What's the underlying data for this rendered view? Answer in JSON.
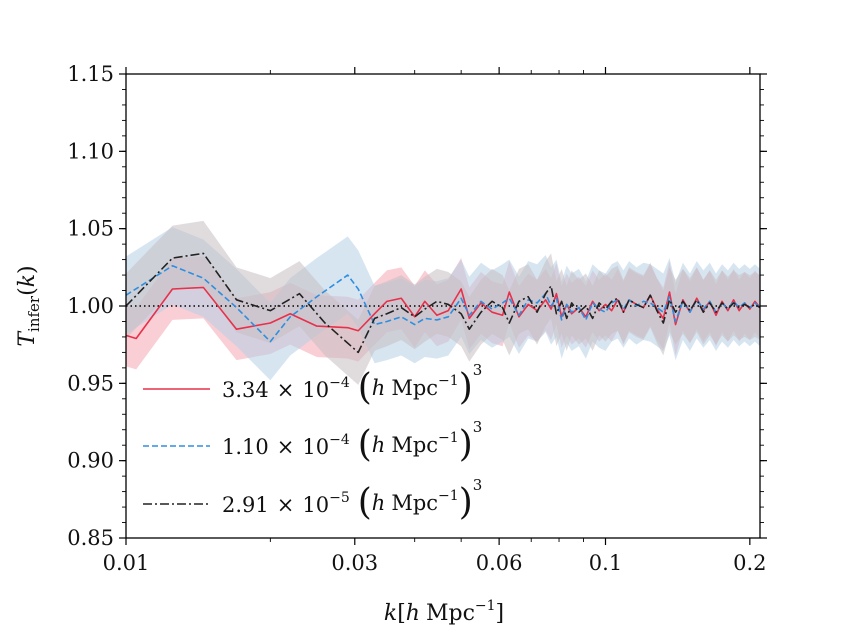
{
  "chart_data": {
    "type": "line",
    "xlabel": "k[h Mpc⁻¹]",
    "ylabel": "T_infer(k)",
    "xscale": "log",
    "xlim": [
      0.01,
      0.21
    ],
    "ylim": [
      0.85,
      1.15
    ],
    "x_ticks": [
      0.01,
      0.03,
      0.06,
      0.1,
      0.2
    ],
    "x_tick_labels": [
      "0.01",
      "0.03",
      "0.06",
      "0.1",
      "0.2"
    ],
    "y_ticks": [
      0.85,
      0.9,
      0.95,
      1.0,
      1.05,
      1.1,
      1.15
    ],
    "y_tick_labels": [
      "0.85",
      "0.90",
      "0.95",
      "1.00",
      "1.05",
      "1.10",
      "1.15"
    ],
    "reference_line": {
      "y": 1.0,
      "style": "dotted",
      "color": "#000000"
    },
    "legend_position": "lower-left",
    "grid": false,
    "series": [
      {
        "name": "3.34 × 10⁻⁴ (h Mpc⁻¹)³",
        "color": "#e8304a",
        "style": "solid",
        "band_color": "#f4a6b2",
        "band_halfwidth": 0.02,
        "x": [
          0.01,
          0.0105,
          0.0125,
          0.0145,
          0.017,
          0.02,
          0.022,
          0.025,
          0.029,
          0.0305,
          0.033,
          0.035,
          0.0375,
          0.04,
          0.042,
          0.0445,
          0.047,
          0.05,
          0.052,
          0.055,
          0.058,
          0.061,
          0.063,
          0.066,
          0.069,
          0.072,
          0.075,
          0.077,
          0.079,
          0.081,
          0.083,
          0.085,
          0.088,
          0.091,
          0.094,
          0.097,
          0.1,
          0.103,
          0.106,
          0.109,
          0.112,
          0.116,
          0.12,
          0.124,
          0.128,
          0.132,
          0.136,
          0.14,
          0.145,
          0.15,
          0.155,
          0.16,
          0.165,
          0.17,
          0.175,
          0.18,
          0.185,
          0.19,
          0.195,
          0.2,
          0.205,
          0.21
        ],
        "y": [
          0.981,
          0.979,
          1.011,
          1.012,
          0.985,
          0.989,
          0.995,
          0.987,
          0.986,
          0.984,
          0.995,
          1.003,
          1.005,
          0.993,
          1.003,
          0.994,
          0.997,
          1.011,
          0.992,
          1.002,
          0.996,
          0.994,
          1.009,
          0.993,
          1.001,
          0.997,
          1.004,
          0.998,
          1.008,
          0.993,
          1.001,
          0.995,
          0.999,
          0.993,
          1.003,
          0.997,
          1.001,
          0.997,
          1.004,
          0.996,
          1.004,
          1.001,
          0.999,
          1.007,
          0.998,
          0.992,
          1.009,
          0.988,
          1.004,
          0.996,
          1.005,
          0.997,
          1.003,
          0.994,
          1.003,
          0.997,
          1.004,
          0.997,
          1.002,
          0.998,
          1.003,
          0.999
        ]
      },
      {
        "name": "1.10 × 10⁻⁴ (h Mpc⁻¹)³",
        "color": "#2e8fe0",
        "style": "dashed",
        "band_color": "#b6cfe6",
        "band_halfwidth": 0.025,
        "x": [
          0.01,
          0.0125,
          0.0145,
          0.017,
          0.02,
          0.022,
          0.025,
          0.029,
          0.0305,
          0.033,
          0.035,
          0.0375,
          0.04,
          0.042,
          0.0445,
          0.047,
          0.05,
          0.052,
          0.055,
          0.058,
          0.061,
          0.063,
          0.066,
          0.069,
          0.072,
          0.075,
          0.077,
          0.079,
          0.081,
          0.083,
          0.085,
          0.088,
          0.091,
          0.094,
          0.097,
          0.1,
          0.103,
          0.106,
          0.109,
          0.112,
          0.116,
          0.12,
          0.124,
          0.128,
          0.132,
          0.136,
          0.14,
          0.145,
          0.15,
          0.155,
          0.16,
          0.165,
          0.17,
          0.175,
          0.18,
          0.185,
          0.19,
          0.195,
          0.2,
          0.205,
          0.21
        ],
        "y": [
          1.007,
          1.026,
          1.018,
          0.999,
          0.977,
          0.993,
          1.006,
          1.02,
          1.011,
          0.988,
          0.99,
          0.993,
          0.988,
          0.992,
          0.991,
          0.993,
          1.005,
          0.994,
          1.003,
          0.998,
          1.002,
          1.005,
          0.994,
          1.004,
          1.002,
          1.008,
          1.0,
          1.005,
          0.991,
          1.001,
          0.996,
          0.999,
          0.991,
          1.002,
          0.998,
          0.996,
          1.002,
          1.004,
          0.998,
          1.004,
          1.0,
          1.003,
          1.002,
          0.999,
          0.996,
          1.006,
          0.99,
          1.003,
          0.996,
          1.004,
          0.998,
          1.003,
          0.996,
          1.002,
          0.998,
          1.003,
          0.999,
          1.002,
          0.999,
          1.002,
          0.999
        ]
      },
      {
        "name": "2.91 × 10⁻⁵ (h Mpc⁻¹)³",
        "color": "#222222",
        "style": "dashdot",
        "band_color": "#c6bfc2",
        "band_halfwidth": 0.021,
        "x": [
          0.01,
          0.0125,
          0.0145,
          0.017,
          0.02,
          0.023,
          0.026,
          0.0305,
          0.033,
          0.035,
          0.0375,
          0.04,
          0.042,
          0.0445,
          0.047,
          0.05,
          0.052,
          0.055,
          0.058,
          0.061,
          0.063,
          0.066,
          0.069,
          0.072,
          0.075,
          0.077,
          0.079,
          0.081,
          0.083,
          0.085,
          0.088,
          0.091,
          0.094,
          0.097,
          0.1,
          0.103,
          0.106,
          0.109,
          0.112,
          0.116,
          0.12,
          0.124,
          0.128,
          0.132,
          0.136,
          0.14,
          0.145,
          0.15,
          0.155,
          0.16,
          0.165,
          0.17,
          0.175,
          0.18,
          0.185,
          0.19,
          0.195,
          0.2,
          0.205,
          0.21
        ],
        "y": [
          1.0,
          1.031,
          1.034,
          1.004,
          0.997,
          1.008,
          0.989,
          0.97,
          0.992,
          0.995,
          0.999,
          0.993,
          0.998,
          1.003,
          1.001,
          0.995,
          0.985,
          0.996,
          1.003,
          0.999,
          0.989,
          1.003,
          1.006,
          0.996,
          1.008,
          1.013,
          0.995,
          1.003,
          0.992,
          1.002,
          0.996,
          1.0,
          0.992,
          1.002,
          0.998,
          1.003,
          1.005,
          0.996,
          1.004,
          1.001,
          0.999,
          1.007,
          0.997,
          0.989,
          1.004,
          0.996,
          1.003,
          0.997,
          1.004,
          0.996,
          1.002,
          0.996,
          1.002,
          0.998,
          1.002,
          0.999,
          1.001,
          0.999,
          1.001,
          0.999
        ]
      }
    ]
  },
  "legend": {
    "entries": [
      {
        "coef": "3.34",
        "exp": "−4"
      },
      {
        "coef": "1.10",
        "exp": "−4"
      },
      {
        "coef": "2.91",
        "exp": "−5"
      }
    ],
    "times": "×",
    "ten": "10",
    "unit_h": "h",
    "unit_mpc": "Mpc",
    "unit_inner_exp": "−1",
    "unit_outer_exp": "3"
  },
  "axes": {
    "x_label_k": "k",
    "x_label_h": "h",
    "x_label_mpc": "Mpc",
    "x_label_exp": "−1",
    "y_label_T": "T",
    "y_label_sub": "infer",
    "y_label_k": "k"
  }
}
